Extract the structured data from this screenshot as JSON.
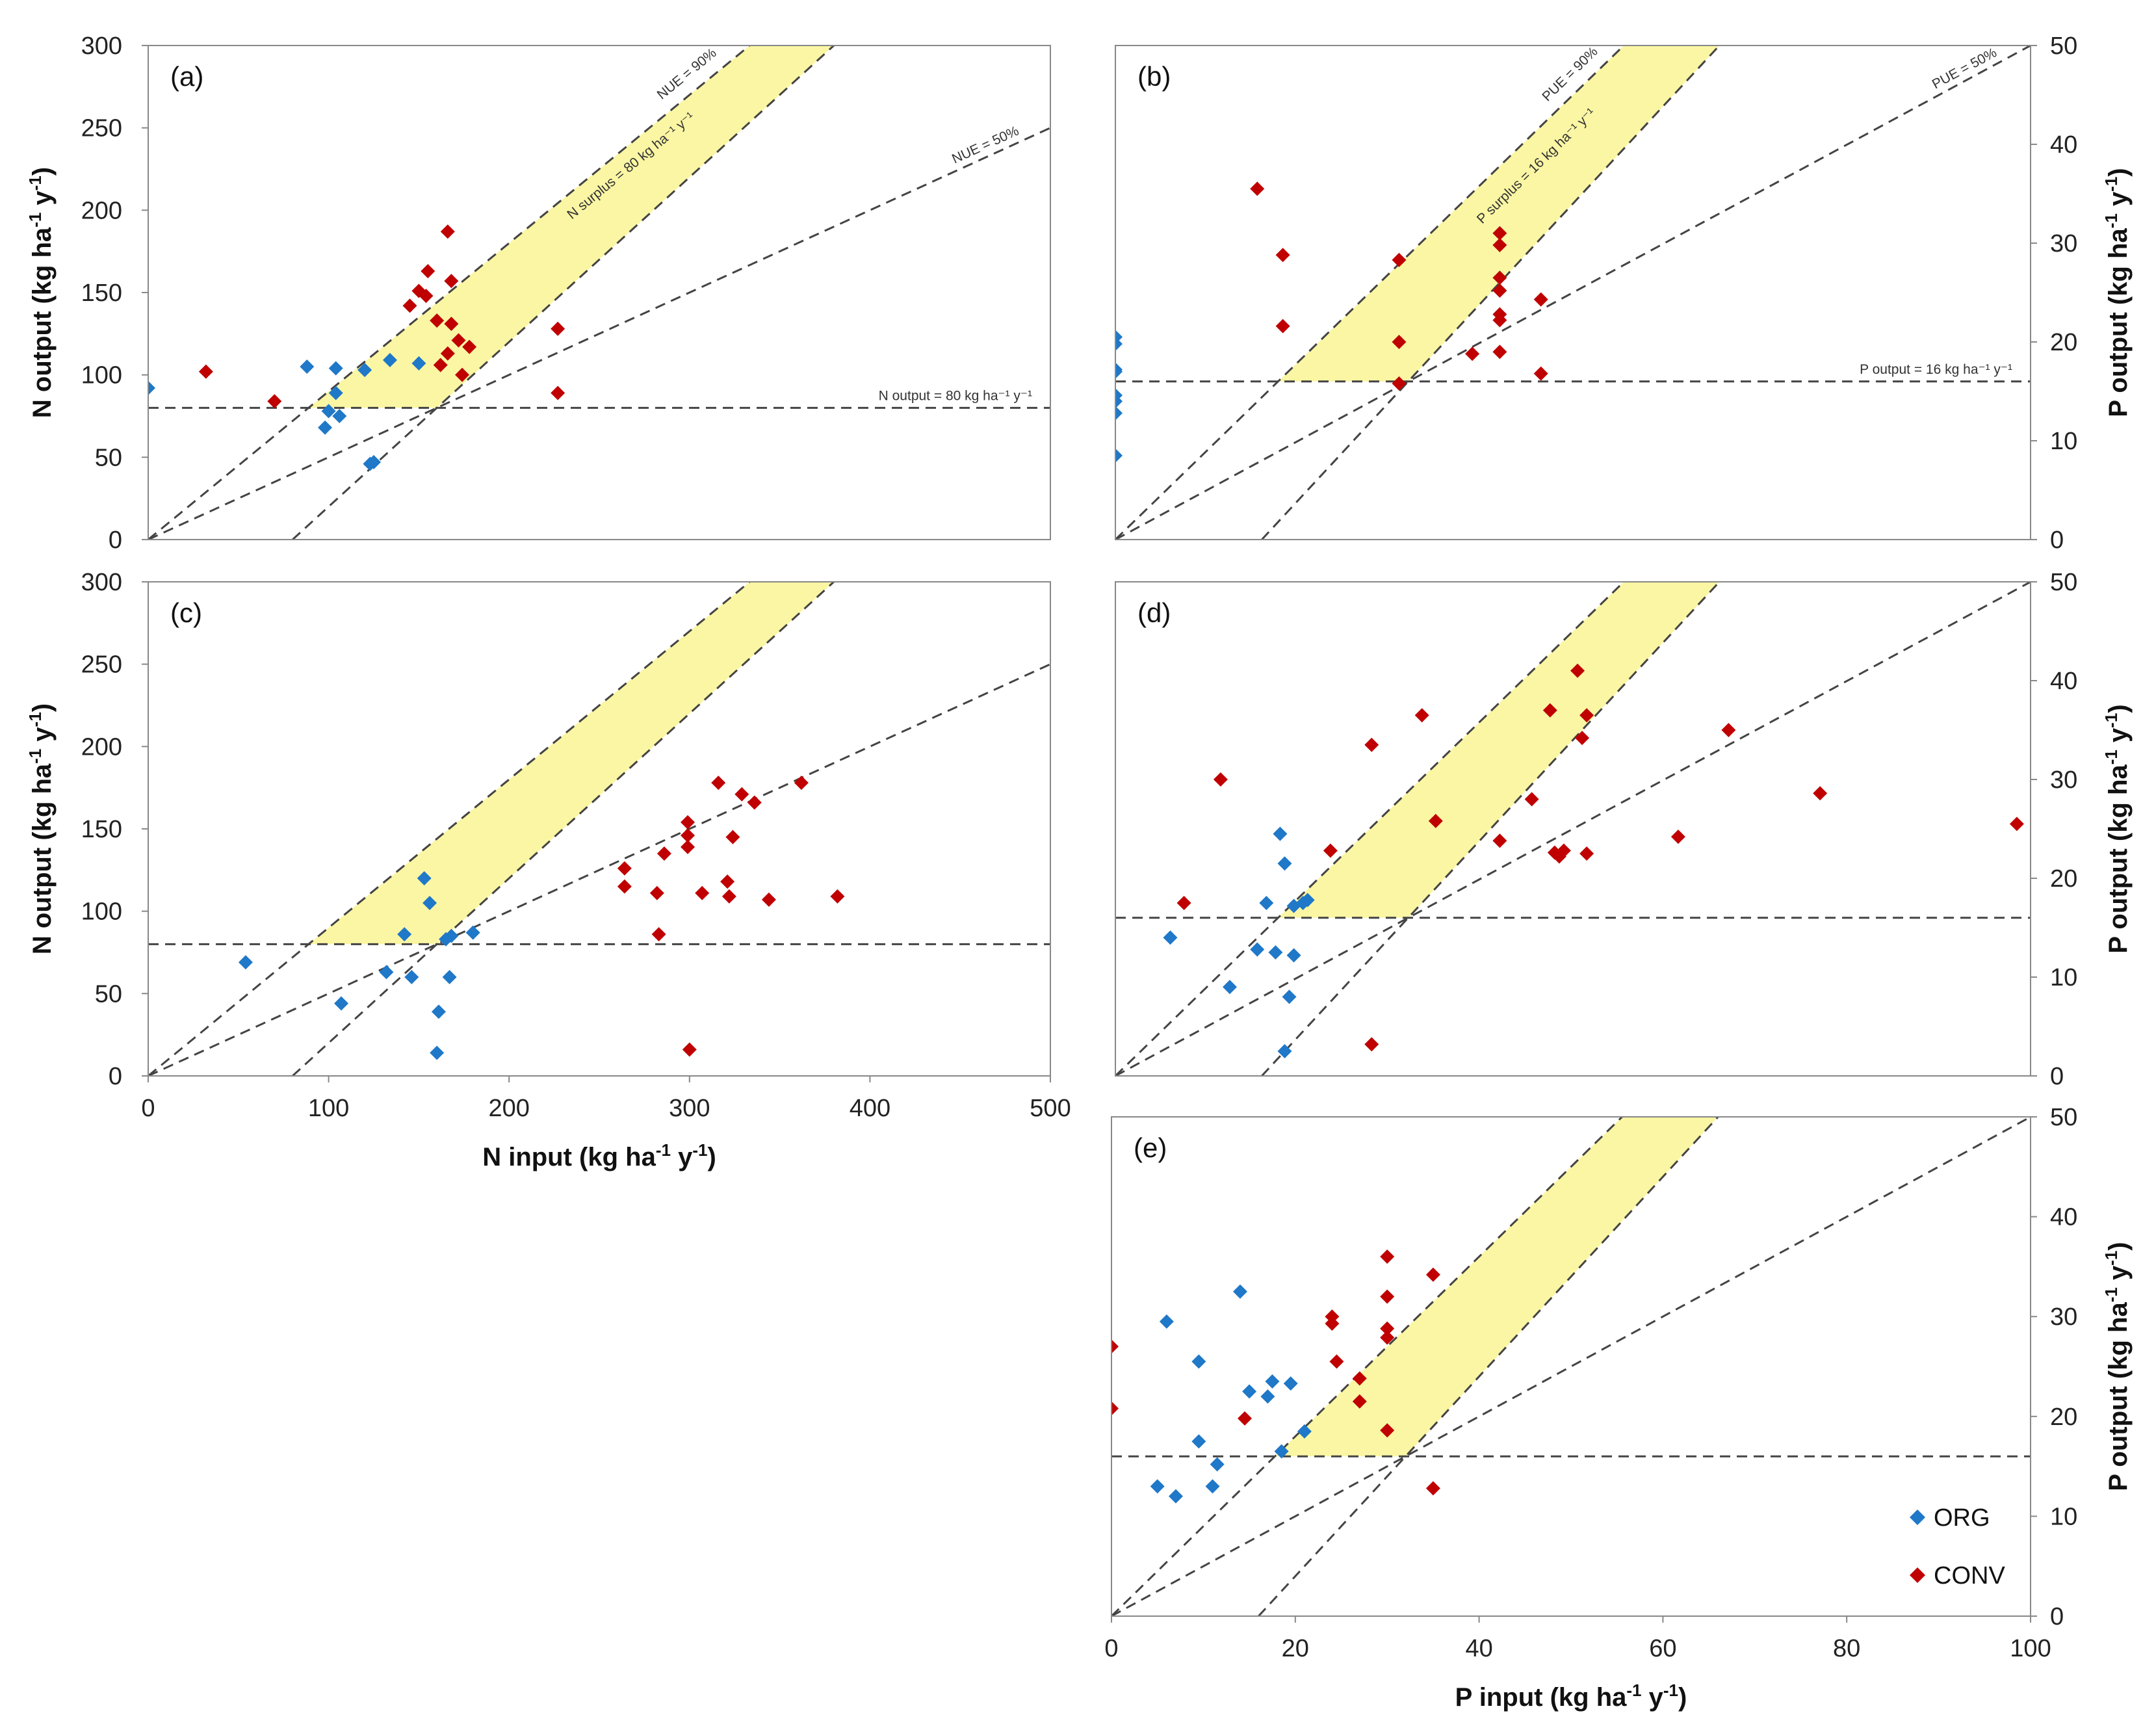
{
  "colors": {
    "org": "#1f78c8",
    "conv": "#c00000",
    "band_fill": "#fbf6a4",
    "dash": "#444444",
    "frame": "#888888"
  },
  "legend": {
    "org_label": "ORG",
    "conv_label": "CONV"
  },
  "chart_data": [
    {
      "panel": "(a)",
      "type": "scatter",
      "nutrient": "N",
      "xlim": [
        0,
        500
      ],
      "ylim": [
        0,
        300
      ],
      "xticks": [],
      "yticks": [
        "0",
        "50",
        "100",
        "150",
        "200",
        "250",
        "300"
      ],
      "ylabel": "N output (kg ha-1 y-1)",
      "ylabel_side": "left",
      "xlabel": "",
      "output_threshold": 80,
      "surplus": 80,
      "efficiencies": [
        0.9,
        0.5
      ],
      "annotations": {
        "eff_high": "NUE = 90%",
        "eff_low": "NUE = 50%",
        "surplus": "N surplus = 80 kg ha⁻¹ y⁻¹",
        "threshold": "N output = 80 kg ha⁻¹ y⁻¹"
      },
      "series": [
        {
          "name": "ORG",
          "points": [
            [
              0,
              92
            ],
            [
              88,
              105
            ],
            [
              104,
              104
            ],
            [
              98,
              68
            ],
            [
              100,
              78
            ],
            [
              106,
              75
            ],
            [
              120,
              103
            ],
            [
              134,
              109
            ],
            [
              150,
              107
            ],
            [
              104,
              89
            ],
            [
              123,
              46
            ],
            [
              125,
              47
            ]
          ]
        },
        {
          "name": "CONV",
          "points": [
            [
              32,
              102
            ],
            [
              70,
              84
            ],
            [
              145,
              142
            ],
            [
              150,
              151
            ],
            [
              154,
              148
            ],
            [
              155,
              163
            ],
            [
              160,
              133
            ],
            [
              162,
              106
            ],
            [
              166,
              113
            ],
            [
              166,
              187
            ],
            [
              168,
              131
            ],
            [
              168,
              157
            ],
            [
              172,
              121
            ],
            [
              174,
              100
            ],
            [
              178,
              117
            ],
            [
              227,
              128
            ],
            [
              227,
              89
            ]
          ]
        }
      ]
    },
    {
      "panel": "(b)",
      "type": "scatter",
      "nutrient": "P",
      "xlim": [
        0,
        100
      ],
      "ylim": [
        0,
        50
      ],
      "xticks": [],
      "yticks": [
        "0",
        "10",
        "20",
        "30",
        "40",
        "50"
      ],
      "ylabel": "P output (kg ha-1 y-1)",
      "ylabel_side": "right",
      "xlabel": "",
      "output_threshold": 16,
      "surplus": 16,
      "efficiencies": [
        0.9,
        0.5
      ],
      "annotations": {
        "eff_high": "PUE = 90%",
        "eff_low": "PUE = 50%",
        "surplus": "P surplus = 16 kg ha⁻¹ y⁻¹",
        "threshold": "P output = 16 kg ha⁻¹ y⁻¹"
      },
      "series": [
        {
          "name": "ORG",
          "points": [
            [
              0,
              20.5
            ],
            [
              0,
              19.8
            ],
            [
              0,
              17.2
            ],
            [
              0,
              17
            ],
            [
              0,
              14.6
            ],
            [
              0,
              14
            ],
            [
              0,
              12.8
            ],
            [
              0,
              8.5
            ]
          ]
        },
        {
          "name": "CONV",
          "points": [
            [
              15.5,
              35.5
            ],
            [
              18.3,
              28.8
            ],
            [
              18.3,
              21.6
            ],
            [
              31,
              28.3
            ],
            [
              31,
              20
            ],
            [
              31,
              15.8
            ],
            [
              39,
              18.8
            ],
            [
              42,
              31
            ],
            [
              42,
              29.8
            ],
            [
              42,
              26.5
            ],
            [
              42,
              25.2
            ],
            [
              42,
              22.8
            ],
            [
              42,
              22.2
            ],
            [
              42,
              19
            ],
            [
              46.5,
              24.3
            ],
            [
              46.5,
              16.8
            ]
          ]
        }
      ]
    },
    {
      "panel": "(c)",
      "type": "scatter",
      "nutrient": "N",
      "xlim": [
        0,
        500
      ],
      "ylim": [
        0,
        300
      ],
      "xticks": [
        "0",
        "100",
        "200",
        "300",
        "400",
        "500"
      ],
      "yticks": [
        "0",
        "50",
        "100",
        "150",
        "200",
        "250",
        "300"
      ],
      "ylabel": "N output (kg ha-1 y-1)",
      "ylabel_side": "left",
      "xlabel": "N input (kg ha-1 y-1)",
      "output_threshold": 80,
      "surplus": 80,
      "efficiencies": [
        0.9,
        0.5
      ],
      "annotations": {},
      "series": [
        {
          "name": "ORG",
          "points": [
            [
              54,
              69
            ],
            [
              107,
              44
            ],
            [
              132,
              63
            ],
            [
              142,
              86
            ],
            [
              146,
              60
            ],
            [
              153,
              120
            ],
            [
              156,
              105
            ],
            [
              161,
              39
            ],
            [
              160,
              14
            ],
            [
              165,
              83
            ],
            [
              167,
              60
            ],
            [
              168,
              85
            ],
            [
              180,
              87
            ]
          ]
        },
        {
          "name": "CONV",
          "points": [
            [
              264,
              126
            ],
            [
              264,
              115
            ],
            [
              282,
              111
            ],
            [
              283,
              86
            ],
            [
              286,
              135
            ],
            [
              299,
              154
            ],
            [
              299,
              146
            ],
            [
              299,
              139
            ],
            [
              300,
              16
            ],
            [
              307,
              111
            ],
            [
              316,
              178
            ],
            [
              321,
              118
            ],
            [
              322,
              109
            ],
            [
              324,
              145
            ],
            [
              329,
              171
            ],
            [
              336,
              166
            ],
            [
              344,
              107
            ],
            [
              362,
              178
            ],
            [
              382,
              109
            ]
          ]
        }
      ]
    },
    {
      "panel": "(d)",
      "type": "scatter",
      "nutrient": "P",
      "xlim": [
        0,
        100
      ],
      "ylim": [
        0,
        50
      ],
      "xticks": [],
      "yticks": [
        "0",
        "10",
        "20",
        "30",
        "40",
        "50"
      ],
      "ylabel": "P output (kg ha-1 y-1)",
      "ylabel_side": "right",
      "xlabel": "",
      "output_threshold": 16,
      "surplus": 16,
      "efficiencies": [
        0.9,
        0.5
      ],
      "annotations": {},
      "series": [
        {
          "name": "ORG",
          "points": [
            [
              6,
              14
            ],
            [
              12.5,
              9
            ],
            [
              15.5,
              12.8
            ],
            [
              16.5,
              17.5
            ],
            [
              17.5,
              12.5
            ],
            [
              18,
              24.5
            ],
            [
              18.5,
              21.5
            ],
            [
              18.5,
              2.5
            ],
            [
              19,
              8
            ],
            [
              19.5,
              17.2
            ],
            [
              19.5,
              12.2
            ],
            [
              20.5,
              17.5
            ],
            [
              21,
              17.8
            ]
          ]
        },
        {
          "name": "CONV",
          "points": [
            [
              7.5,
              17.5
            ],
            [
              11.5,
              30
            ],
            [
              23.5,
              22.8
            ],
            [
              28,
              33.5
            ],
            [
              28,
              3.2
            ],
            [
              33.5,
              36.5
            ],
            [
              35,
              25.8
            ],
            [
              42,
              23.8
            ],
            [
              45.5,
              28
            ],
            [
              47.5,
              37
            ],
            [
              48,
              22.6
            ],
            [
              48.5,
              22.2
            ],
            [
              49,
              22.8
            ],
            [
              50.5,
              41
            ],
            [
              51,
              34.2
            ],
            [
              51.5,
              36.5
            ],
            [
              51.5,
              22.5
            ],
            [
              61.5,
              24.2
            ],
            [
              67,
              35
            ],
            [
              77,
              28.6
            ],
            [
              98.5,
              25.5
            ]
          ]
        }
      ]
    },
    {
      "panel": "(e)",
      "type": "scatter",
      "nutrient": "P",
      "xlim": [
        0,
        100
      ],
      "ylim": [
        0,
        50
      ],
      "xticks": [
        "0",
        "20",
        "40",
        "60",
        "80",
        "100"
      ],
      "yticks": [
        "0",
        "10",
        "20",
        "30",
        "40",
        "50"
      ],
      "ylabel": "P output (kg ha-1 y-1)",
      "ylabel_side": "right",
      "xlabel": "P input (kg ha-1 y-1)",
      "output_threshold": 16,
      "surplus": 16,
      "efficiencies": [
        0.9,
        0.5
      ],
      "annotations": {},
      "series": [
        {
          "name": "ORG",
          "points": [
            [
              5,
              13
            ],
            [
              6,
              29.5
            ],
            [
              7,
              12
            ],
            [
              9.5,
              25.5
            ],
            [
              9.5,
              17.5
            ],
            [
              11,
              13
            ],
            [
              11.5,
              15.2
            ],
            [
              14,
              32.5
            ],
            [
              15,
              22.5
            ],
            [
              17,
              22
            ],
            [
              17.5,
              23.5
            ],
            [
              18.5,
              16.5
            ],
            [
              19.5,
              23.3
            ],
            [
              21,
              18.5
            ]
          ]
        },
        {
          "name": "CONV",
          "points": [
            [
              0,
              27
            ],
            [
              0,
              20.8
            ],
            [
              14.5,
              19.8
            ],
            [
              24,
              30
            ],
            [
              24,
              29.3
            ],
            [
              24.5,
              25.5
            ],
            [
              27,
              23.8
            ],
            [
              27,
              21.5
            ],
            [
              30,
              36
            ],
            [
              30,
              32
            ],
            [
              30,
              28.8
            ],
            [
              30,
              27.9
            ],
            [
              30,
              18.6
            ],
            [
              35,
              34.2
            ],
            [
              35,
              12.8
            ]
          ]
        }
      ]
    }
  ]
}
